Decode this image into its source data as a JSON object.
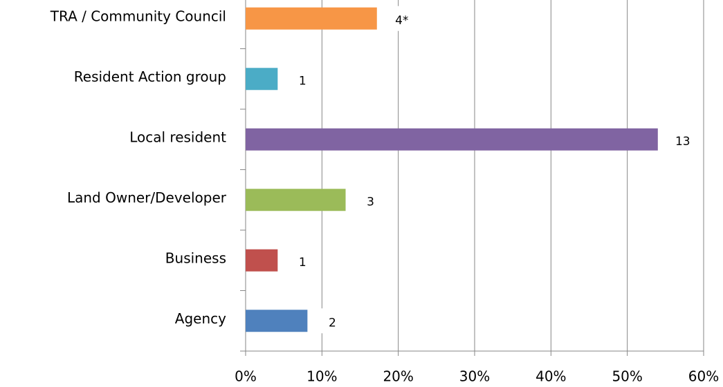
{
  "chart_data": {
    "type": "hbar",
    "categories": [
      "TRA / Community Council",
      "Resident Action group",
      "Local resident",
      "Land Owner/Developer",
      "Business",
      "Agency"
    ],
    "values": [
      17.2,
      4.2,
      54,
      13.1,
      4.2,
      8.1
    ],
    "colors": [
      "#f79646",
      "#4bacc6",
      "#8064a2",
      "#9bbb59",
      "#c0504d",
      "#4f81bd"
    ],
    "bar_labels": [
      "4*",
      "1",
      "13",
      "3",
      "1",
      "2"
    ],
    "xlim": [
      0,
      60
    ],
    "xticks": [
      {
        "value": 0,
        "label": "0%"
      },
      {
        "value": 10,
        "label": "10%"
      },
      {
        "value": 20,
        "label": "20%"
      },
      {
        "value": 30,
        "label": "30%"
      },
      {
        "value": 40,
        "label": "40%"
      },
      {
        "value": 50,
        "label": "50%"
      },
      {
        "value": 60,
        "label": "60%"
      }
    ],
    "grid": true
  }
}
